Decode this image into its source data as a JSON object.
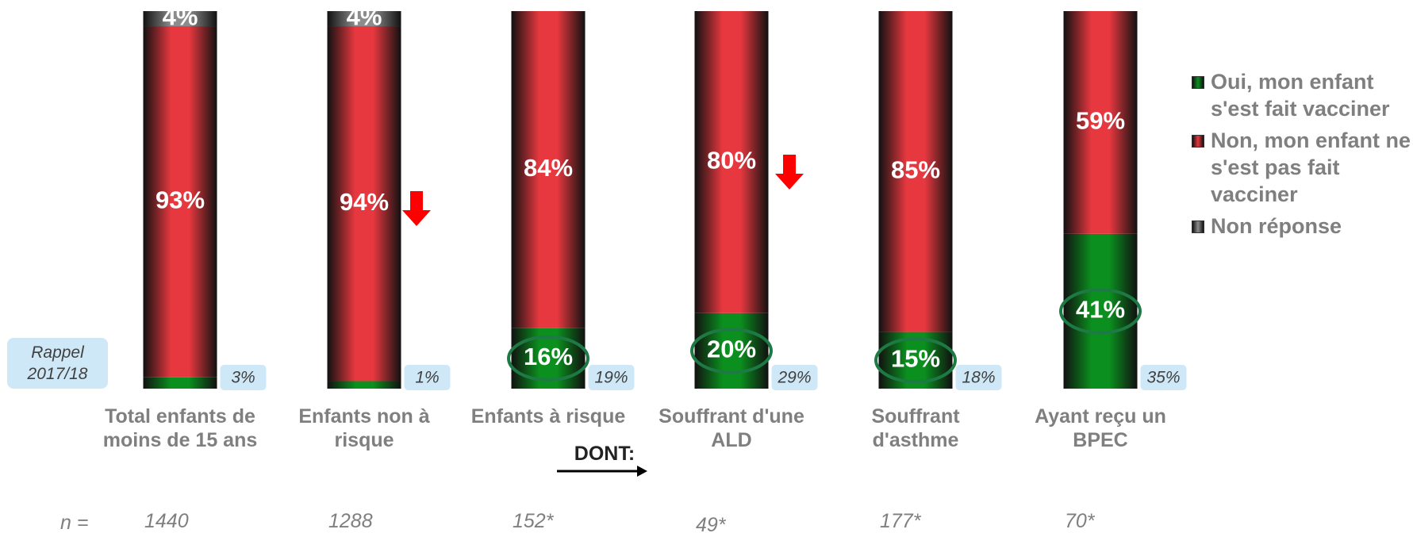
{
  "chart_data": {
    "type": "stacked_bar",
    "categories": [
      "Total enfants de\nmoins de 15 ans",
      "Enfants non à\nrisque",
      "Enfants à risque",
      "Souffrant d'une\nALD",
      "Souffrant\nd'asthme",
      "Ayant reçu un\nBPEC"
    ],
    "series": [
      {
        "name": "Oui, mon enfant s'est fait vacciner",
        "color": "#0b8f1e",
        "values": [
          3,
          2,
          16,
          20,
          15,
          41
        ],
        "value_labels": [
          "3%",
          "2%",
          "16%",
          "20%",
          "15%",
          "41%"
        ]
      },
      {
        "name": "Non, mon enfant ne s'est pas fait vacciner",
        "color": "#e8383f",
        "values": [
          93,
          94,
          84,
          80,
          85,
          59
        ],
        "value_labels": [
          "93%",
          "94%",
          "84%",
          "80%",
          "85%",
          "59%"
        ]
      },
      {
        "name": "Non réponse",
        "color": "#8c8c8c",
        "values": [
          4,
          4,
          0,
          0,
          0,
          0
        ],
        "value_labels": [
          "4%",
          "4%",
          null,
          null,
          null,
          null
        ]
      }
    ],
    "ylim": [
      0,
      100
    ],
    "rappel": {
      "label": "Rappel\n2017/18",
      "values": [
        3,
        1,
        19,
        29,
        18,
        35
      ],
      "value_labels": [
        "3%",
        "1%",
        "19%",
        "29%",
        "18%",
        "35%"
      ]
    },
    "dont_label": "DONT:",
    "n_label": "n =",
    "n_values": [
      1440,
      1288,
      "152*",
      "49*",
      "177*",
      "70*"
    ]
  }
}
